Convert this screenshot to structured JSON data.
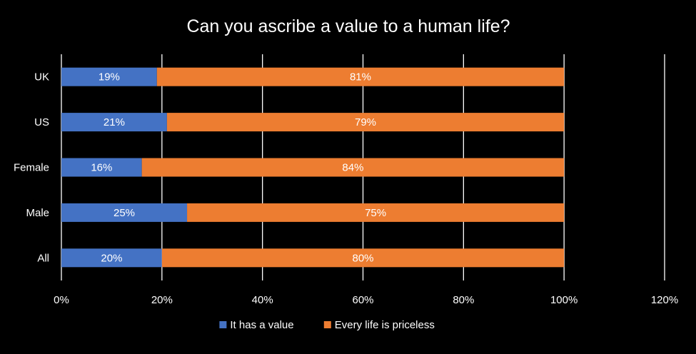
{
  "chart_data": {
    "type": "bar",
    "orientation": "horizontal",
    "stacked": true,
    "title": "Can you ascribe a value to a human life?",
    "categories": [
      "UK",
      "US",
      "Female",
      "Male",
      "All"
    ],
    "series": [
      {
        "name": "It has a value",
        "values": [
          19,
          21,
          16,
          25,
          20
        ],
        "labels": [
          "19%",
          "21%",
          "16%",
          "25%",
          "20%"
        ],
        "color": "#4472C4"
      },
      {
        "name": "Every life is priceless",
        "values": [
          81,
          79,
          84,
          75,
          80
        ],
        "labels": [
          "81%",
          "79%",
          "84%",
          "75%",
          "80%"
        ],
        "color": "#ED7D31"
      }
    ],
    "xlim": [
      0,
      120
    ],
    "xticks": [
      0,
      20,
      40,
      60,
      80,
      100,
      120
    ],
    "xtick_labels": [
      "0%",
      "20%",
      "40%",
      "60%",
      "80%",
      "100%",
      "120%"
    ],
    "grid": "vertical",
    "legend_position": "bottom",
    "background": "#000000",
    "text_color": "#FFFFFF",
    "grid_color": "#FFFFFF"
  }
}
